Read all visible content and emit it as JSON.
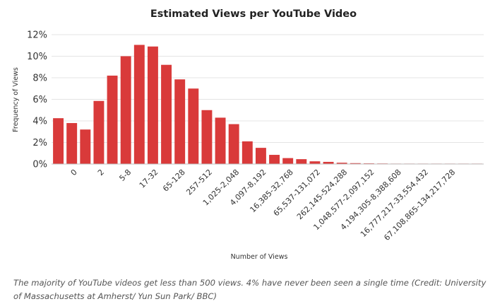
{
  "chart_data": {
    "type": "bar",
    "title": "Estimated Views per YouTube Video",
    "xlabel": "Number of Views",
    "ylabel": "Frequency of Views",
    "ylim": [
      0,
      12
    ],
    "yticks": [
      "0%",
      "2%",
      "4%",
      "6%",
      "8%",
      "10%",
      "12%"
    ],
    "grid": true,
    "legend": "none",
    "bar_color": "#d93a3a",
    "tick_labels": [
      "0",
      "2",
      "5-8",
      "17-32",
      "65-128",
      "257-512",
      "1,025-2,048",
      "4,097-8,192",
      "16,385-32,768",
      "65,537-131,072",
      "262,145-524,288",
      "1,048,577-2,097,152",
      "4,194,305-8,388,608",
      "16,777,217-33,554,432",
      "67,108,865-134,217,728"
    ],
    "values": [
      4.25,
      3.8,
      3.2,
      5.85,
      8.2,
      10.0,
      11.05,
      10.9,
      9.2,
      7.85,
      7.0,
      5.0,
      4.3,
      3.7,
      2.1,
      1.5,
      0.85,
      0.55,
      0.45,
      0.25,
      0.2,
      0.12,
      0.08,
      0.06,
      0.05,
      0.02,
      0.01,
      0.01,
      0.01,
      0.005,
      0.005,
      0.005
    ]
  },
  "caption": "The majority of YouTube videos get less than 500 views. 4% have never been seen a single time (Credit: University of Massachusetts at Amherst/ Yun Sun Park/ BBC)"
}
